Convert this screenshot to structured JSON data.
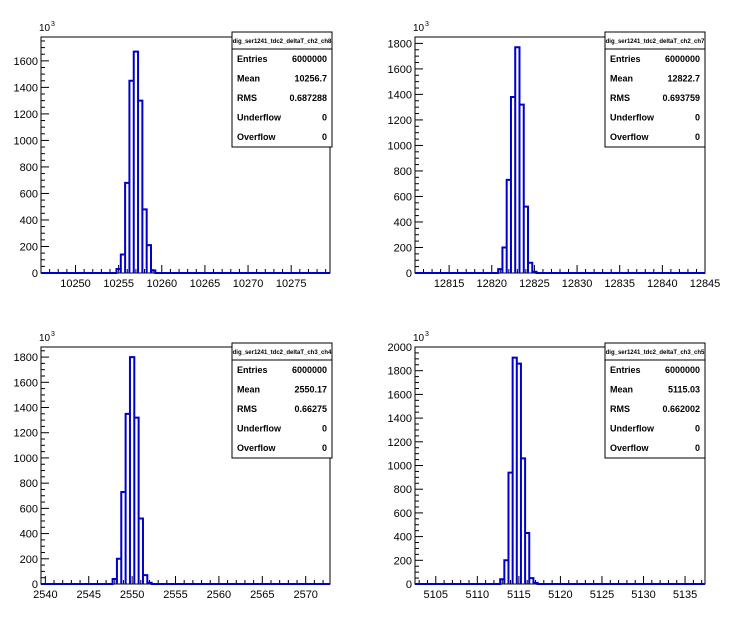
{
  "chart_data": [
    {
      "type": "histogram",
      "xlim": [
        10246,
        10279.5
      ],
      "ylim": [
        0,
        1780
      ],
      "y_exponent": "10",
      "y_exponent_power": "3",
      "xticks": [
        "10250",
        "10255",
        "10260",
        "10265",
        "10270",
        "10275"
      ],
      "yticks": [
        "0",
        "200",
        "400",
        "600",
        "800",
        "1000",
        "1200",
        "1400",
        "1600"
      ],
      "bin_width": 0.5,
      "bins": [
        {
          "x": 10255.0,
          "y": 30
        },
        {
          "x": 10255.5,
          "y": 140
        },
        {
          "x": 10256.0,
          "y": 680
        },
        {
          "x": 10256.5,
          "y": 1450
        },
        {
          "x": 10257.0,
          "y": 1670
        },
        {
          "x": 10257.5,
          "y": 1300
        },
        {
          "x": 10258.0,
          "y": 480
        },
        {
          "x": 10258.5,
          "y": 210
        },
        {
          "x": 10259.0,
          "y": 20
        }
      ],
      "stats": {
        "title": "dig_ser1241_tdc2_deltaT_ch2_ch8",
        "entries_label": "Entries",
        "entries": "6000000",
        "mean_label": "Mean",
        "mean": "10256.7",
        "rms_label": "RMS",
        "rms": "0.687288",
        "underflow_label": "Underflow",
        "underflow": "0",
        "overflow_label": "Overflow",
        "overflow": "0"
      }
    },
    {
      "type": "histogram",
      "xlim": [
        12811,
        12845
      ],
      "ylim": [
        0,
        1850
      ],
      "y_exponent": "10",
      "y_exponent_power": "3",
      "xticks": [
        "12815",
        "12820",
        "12825",
        "12830",
        "12835",
        "12840",
        "12845"
      ],
      "yticks": [
        "0",
        "200",
        "400",
        "600",
        "800",
        "1000",
        "1200",
        "1400",
        "1600",
        "1800"
      ],
      "bin_width": 0.5,
      "bins": [
        {
          "x": 12821.0,
          "y": 30
        },
        {
          "x": 12821.5,
          "y": 200
        },
        {
          "x": 12822.0,
          "y": 730
        },
        {
          "x": 12822.5,
          "y": 1380
        },
        {
          "x": 12823.0,
          "y": 1770
        },
        {
          "x": 12823.5,
          "y": 1320
        },
        {
          "x": 12824.0,
          "y": 520
        },
        {
          "x": 12824.5,
          "y": 80
        },
        {
          "x": 12825.0,
          "y": 10
        }
      ],
      "stats": {
        "title": "dig_ser1241_tdc2_deltaT_ch2_ch7",
        "entries_label": "Entries",
        "entries": "6000000",
        "mean_label": "Mean",
        "mean": "12822.7",
        "rms_label": "RMS",
        "rms": "0.693759",
        "underflow_label": "Underflow",
        "underflow": "0",
        "overflow_label": "Overflow",
        "overflow": "0"
      }
    },
    {
      "type": "histogram",
      "xlim": [
        2539.5,
        2572.8
      ],
      "ylim": [
        0,
        1880
      ],
      "y_exponent": "10",
      "y_exponent_power": "3",
      "xticks": [
        "2540",
        "2545",
        "2550",
        "2555",
        "2560",
        "2565",
        "2570"
      ],
      "yticks": [
        "0",
        "200",
        "400",
        "600",
        "800",
        "1000",
        "1200",
        "1400",
        "1600",
        "1800"
      ],
      "bin_width": 0.5,
      "bins": [
        {
          "x": 2548.0,
          "y": 40
        },
        {
          "x": 2548.5,
          "y": 200
        },
        {
          "x": 2549.0,
          "y": 730
        },
        {
          "x": 2549.5,
          "y": 1350
        },
        {
          "x": 2550.0,
          "y": 1800
        },
        {
          "x": 2550.5,
          "y": 1320
        },
        {
          "x": 2551.0,
          "y": 520
        },
        {
          "x": 2551.5,
          "y": 70
        },
        {
          "x": 2552.0,
          "y": 10
        }
      ],
      "stats": {
        "title": "dig_ser1241_tdc2_deltaT_ch3_ch4",
        "entries_label": "Entries",
        "entries": "6000000",
        "mean_label": "Mean",
        "mean": "2550.17",
        "rms_label": "RMS",
        "rms": "0.66275",
        "underflow_label": "Underflow",
        "underflow": "0",
        "overflow_label": "Overflow",
        "overflow": "0"
      }
    },
    {
      "type": "histogram",
      "xlim": [
        5102.5,
        5137.4
      ],
      "ylim": [
        0,
        2000
      ],
      "y_exponent": "10",
      "y_exponent_power": "3",
      "xticks": [
        "5105",
        "5110",
        "5115",
        "5120",
        "5125",
        "5130",
        "5135"
      ],
      "yticks": [
        "0",
        "200",
        "400",
        "600",
        "800",
        "1000",
        "1200",
        "1400",
        "1600",
        "1800",
        "2000"
      ],
      "bin_width": 0.5,
      "bins": [
        {
          "x": 5113.0,
          "y": 40
        },
        {
          "x": 5113.5,
          "y": 200
        },
        {
          "x": 5114.0,
          "y": 940
        },
        {
          "x": 5114.5,
          "y": 1910
        },
        {
          "x": 5115.0,
          "y": 1860
        },
        {
          "x": 5115.5,
          "y": 1060
        },
        {
          "x": 5116.0,
          "y": 430
        },
        {
          "x": 5116.5,
          "y": 50
        },
        {
          "x": 5117.0,
          "y": 10
        }
      ],
      "stats": {
        "title": "dig_ser1241_tdc2_deltaT_ch3_ch5",
        "entries_label": "Entries",
        "entries": "6000000",
        "mean_label": "Mean",
        "mean": "5115.03",
        "rms_label": "RMS",
        "rms": "0.662002",
        "underflow_label": "Underflow",
        "underflow": "0",
        "overflow_label": "Overflow",
        "overflow": "0"
      }
    }
  ],
  "colors": {
    "histogram_line": "#0000cc",
    "axis": "#000000",
    "background": "#ffffff"
  }
}
